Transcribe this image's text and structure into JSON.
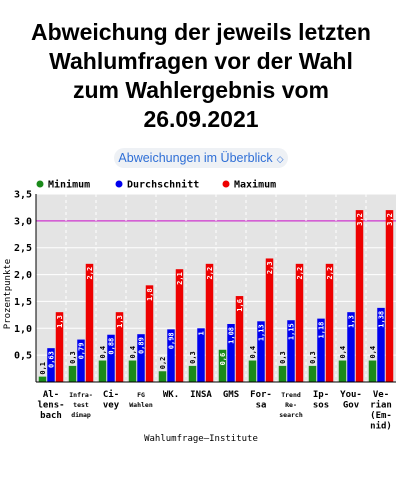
{
  "title_lines": [
    "Abweichung der jeweils letzten",
    "Wahlumfragen vor der Wahl",
    "zum Wahlergebnis vom",
    "26.09.2021"
  ],
  "dropdown": {
    "label": "Abweichungen im Überblick"
  },
  "colors": {
    "minimum": "#1a8a1a",
    "durchschnitt": "#0000ee",
    "maximum": "#ee0000",
    "plot_bg": "#e4e4e4",
    "reference_line": "#cc33cc"
  },
  "chart_data": {
    "type": "bar",
    "title": "Abweichung der jeweils letzten Wahlumfragen vor der Wahl zum Wahlergebnis vom 26.09.2021",
    "xlabel": "Wahlumfrage–Institute",
    "ylabel": "Prozentpunkte",
    "ylim": [
      0,
      3.5
    ],
    "yticks": [
      "0,5",
      "1,0",
      "1,5",
      "2,0",
      "2,5",
      "3,0",
      "3,5"
    ],
    "reference_line": 3.0,
    "grid": true,
    "legend_position": "top-left",
    "categories": [
      [
        "Al-",
        "lens-",
        "bach"
      ],
      [
        "Infra-",
        "test",
        "dimap"
      ],
      [
        "Ci-",
        "vey"
      ],
      [
        "FG",
        "Wahlen"
      ],
      [
        "WK."
      ],
      [
        "INSA"
      ],
      [
        "GMS"
      ],
      [
        "For-",
        "sa"
      ],
      [
        "Trend",
        "Re-",
        "search"
      ],
      [
        "Ip-",
        "sos"
      ],
      [
        "You-",
        "Gov"
      ],
      [
        "Ve-",
        "rian",
        "(Em-",
        "nid)"
      ]
    ],
    "series": [
      {
        "name": "Minimum",
        "values": [
          0.1,
          0.3,
          0.4,
          0.4,
          0.2,
          0.3,
          0.6,
          0.4,
          0.3,
          0.3,
          0.4,
          0.4
        ],
        "labels": [
          "0,1",
          "0,3",
          "0,4",
          "0,4",
          "0,2",
          "0,3",
          "0,6",
          "0,4",
          "0,3",
          "0,3",
          "0,4",
          "0,4"
        ]
      },
      {
        "name": "Durchschnitt",
        "values": [
          0.63,
          0.79,
          0.88,
          0.89,
          0.98,
          1.0,
          1.08,
          1.13,
          1.15,
          1.18,
          1.3,
          1.38
        ],
        "labels": [
          "0,63",
          "0,79",
          "0,88",
          "0,89",
          "0,98",
          "1",
          "1,08",
          "1,13",
          "1,15",
          "1,18",
          "1,3",
          "1,38"
        ]
      },
      {
        "name": "Maximum",
        "values": [
          1.3,
          2.2,
          1.3,
          1.8,
          2.1,
          2.2,
          1.6,
          2.3,
          2.2,
          2.2,
          3.2,
          3.2
        ],
        "labels": [
          "1,3",
          "2,2",
          "1,3",
          "1,8",
          "2,1",
          "2,2",
          "1,6",
          "2,3",
          "2,2",
          "2,2",
          "3,2",
          "3,2"
        ]
      }
    ]
  }
}
